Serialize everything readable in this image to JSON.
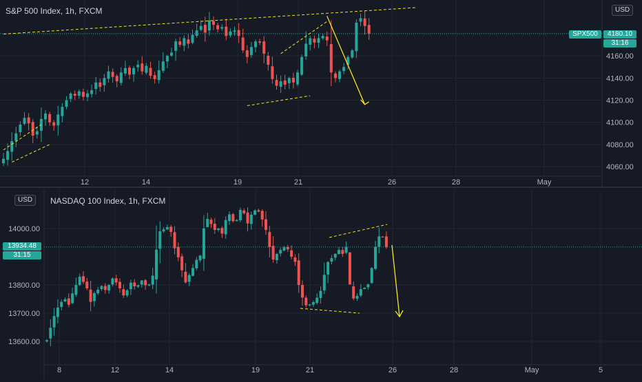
{
  "top_panel": {
    "title": "S&P 500 Index, 1h, FXCM",
    "currency_badge": "USD",
    "symbol_tag": "SPX500",
    "price_tag": "4180.10",
    "countdown": "31:16"
  },
  "bottom_panel": {
    "title": "NASDAQ 100 Index, 1h, FXCM",
    "currency_badge": "USD",
    "price_tag": "13934.48",
    "countdown": "31:15"
  },
  "colors": {
    "background": "#161a25",
    "up": "#26a69a",
    "down": "#ef5350",
    "trend": "#f5e61d",
    "grid": "#232733"
  },
  "chart_data": [
    {
      "type": "candlestick",
      "title": "S&P 500 Index, 1h, FXCM",
      "currency": "USD",
      "x_tick_labels": [
        "12",
        "14",
        "19",
        "21",
        "26",
        "28",
        "May"
      ],
      "y_tick_labels": [
        "4060.00",
        "4080.00",
        "4100.00",
        "4120.00",
        "4140.00",
        "4160.00",
        "4180.00"
      ],
      "ylim": [
        4056,
        4201
      ],
      "last_price": 4180.1,
      "series_close": [
        4067,
        4074,
        4083,
        4090,
        4098,
        4104,
        4099,
        4088,
        4092,
        4103,
        4108,
        4100,
        4097,
        4107,
        4114,
        4120,
        4126,
        4124,
        4128,
        4123,
        4126,
        4129,
        4136,
        4132,
        4140,
        4146,
        4141,
        4137,
        4145,
        4149,
        4143,
        4149,
        4152,
        4146,
        4151,
        4142,
        4139,
        4147,
        4155,
        4160,
        4163,
        4173,
        4170,
        4176,
        4171,
        4179,
        4183,
        4187,
        4181,
        4192,
        4188,
        4184,
        4186,
        4178,
        4182,
        4183,
        4178,
        4165,
        4159,
        4168,
        4173,
        4172,
        4162,
        4152,
        4139,
        4133,
        4137,
        4134,
        4140,
        4136,
        4145,
        4159,
        4171,
        4176,
        4172,
        4176,
        4178,
        4174,
        4145,
        4140,
        4146,
        4150,
        4159,
        4165,
        4190,
        4194,
        4187,
        4180
      ],
      "annotations": {
        "trendlines": [
          {
            "from": [
              0,
              4179.7
            ],
            "to": [
              98,
              4203.6
            ]
          },
          {
            "from": [
              0,
              4075
            ],
            "to": [
              9,
              4098
            ]
          },
          {
            "from": [
              2,
              4064
            ],
            "to": [
              11,
              4080
            ]
          },
          {
            "from": [
              58,
              4115
            ],
            "to": [
              73,
              4124
            ]
          },
          {
            "from": [
              66,
              4162
            ],
            "to": [
              77,
              4191
            ]
          }
        ],
        "forecast_arrow": {
          "from": [
            77,
            4196
          ],
          "to": [
            86,
            4116
          ]
        }
      }
    },
    {
      "type": "candlestick",
      "title": "NASDAQ 100 Index, 1h, FXCM",
      "currency": "USD",
      "x_tick_labels": [
        "8",
        "12",
        "14",
        "19",
        "21",
        "26",
        "28",
        "May",
        "5"
      ],
      "y_tick_labels": [
        "13600.00",
        "13700.00",
        "13800.00",
        "14000.00"
      ],
      "ylim": [
        13562,
        14107
      ],
      "last_price": 13934.48,
      "series_close": [
        13604,
        13648,
        13690,
        13720,
        13740,
        13749,
        13730,
        13770,
        13800,
        13829,
        13811,
        13788,
        13740,
        13771,
        13783,
        13796,
        13782,
        13800,
        13823,
        13809,
        13788,
        13763,
        13781,
        13808,
        13795,
        13799,
        13816,
        13799,
        13802,
        13833,
        13925,
        13990,
        13997,
        14005,
        13988,
        13930,
        13898,
        13852,
        13809,
        13835,
        13860,
        13889,
        13904,
        14000,
        14034,
        14016,
        13995,
        14000,
        13982,
        14030,
        14050,
        14026,
        14030,
        14066,
        14054,
        14018,
        14049,
        14064,
        14060,
        14032,
        13995,
        13934,
        13890,
        13910,
        13924,
        13934,
        13926,
        13900,
        13882,
        13800,
        13755,
        13728,
        13731,
        13739,
        13755,
        13779,
        13836,
        13881,
        13895,
        13910,
        13924,
        13910,
        13935,
        13802,
        13752,
        13761,
        13785,
        13790,
        13802,
        13860,
        13935,
        13972,
        13970,
        13934
      ]
    }
  ]
}
